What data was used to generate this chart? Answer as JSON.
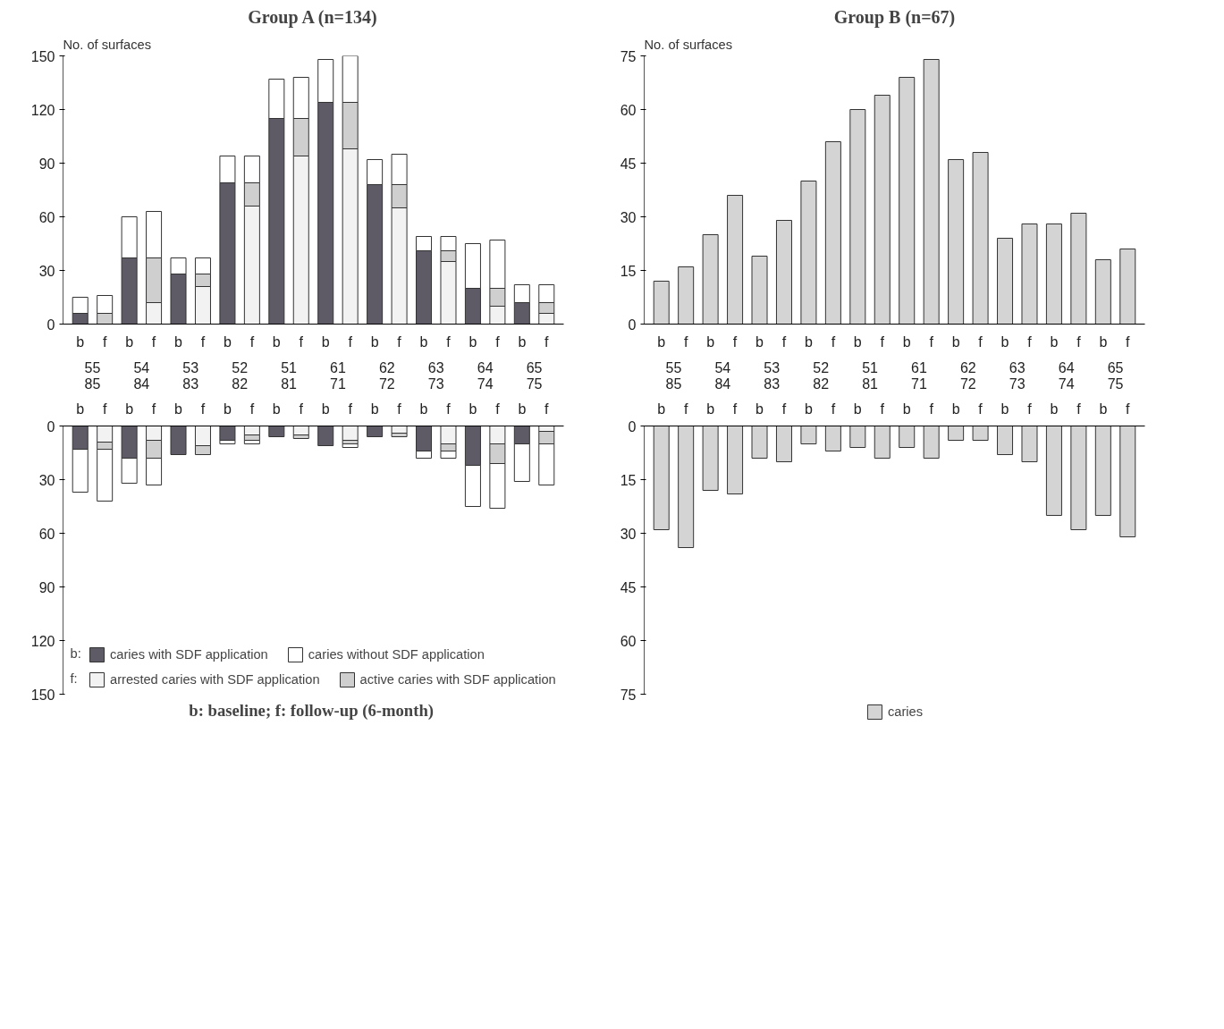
{
  "chart_data": [
    {
      "type": "bar",
      "title": "Group A (n=134)",
      "ylabel": "No. of surfaces",
      "stacked": true,
      "grid": false,
      "legend": false,
      "categories": [
        "b",
        "f",
        "b",
        "f",
        "b",
        "f",
        "b",
        "f",
        "b",
        "f",
        "b",
        "f",
        "b",
        "f",
        "b",
        "f",
        "b",
        "f",
        "b",
        "f"
      ],
      "annotations": [
        "55",
        "54",
        "53",
        "52",
        "51",
        "61",
        "62",
        "63",
        "64",
        "65"
      ],
      "ylim": [
        0,
        150
      ],
      "yticks": [
        0,
        30,
        60,
        90,
        120,
        150
      ],
      "series": [
        {
          "color": "#5e5a66",
          "values": [
            6,
            null,
            37,
            null,
            28,
            null,
            79,
            null,
            115,
            null,
            124,
            null,
            78,
            null,
            41,
            null,
            20,
            null,
            12,
            null
          ]
        },
        {
          "color": "#f2f2f2",
          "values": [
            null,
            null,
            null,
            12,
            null,
            21,
            null,
            66,
            null,
            94,
            null,
            98,
            null,
            65,
            null,
            35,
            null,
            10,
            null,
            6
          ]
        },
        {
          "color": "#cfcfcf",
          "values": [
            null,
            6,
            null,
            25,
            null,
            7,
            null,
            13,
            null,
            21,
            null,
            26,
            null,
            13,
            null,
            6,
            null,
            10,
            null,
            6
          ]
        },
        {
          "color": "#ffffff",
          "values": [
            9,
            10,
            23,
            26,
            9,
            9,
            15,
            15,
            22,
            23,
            24,
            26,
            14,
            17,
            8,
            8,
            25,
            27,
            10,
            10
          ]
        }
      ]
    },
    {
      "type": "bar",
      "stacked": true,
      "grid": false,
      "legend": "bottom",
      "categories": [
        "b",
        "f",
        "b",
        "f",
        "b",
        "f",
        "b",
        "f",
        "b",
        "f",
        "b",
        "f",
        "b",
        "f",
        "b",
        "f",
        "b",
        "f",
        "b",
        "f"
      ],
      "annotations": [
        "85",
        "84",
        "83",
        "82",
        "81",
        "71",
        "72",
        "73",
        "74",
        "75",
        "b:",
        "f:",
        "b: baseline;  f: follow-up (6-month)"
      ],
      "ylim": [
        150,
        0
      ],
      "yticks": [
        0,
        30,
        60,
        90,
        120,
        150
      ],
      "series": [
        {
          "name": "caries with SDF application",
          "color": "#5e5a66",
          "values": [
            13,
            null,
            18,
            null,
            16,
            null,
            8,
            null,
            6,
            null,
            11,
            null,
            6,
            null,
            14,
            null,
            22,
            null,
            10,
            null
          ]
        },
        {
          "name": "arrested caries with SDF application",
          "color": "#f2f2f2",
          "values": [
            null,
            9,
            null,
            8,
            null,
            11,
            null,
            5,
            null,
            5,
            null,
            8,
            null,
            4,
            null,
            10,
            null,
            10,
            null,
            3
          ]
        },
        {
          "name": "active caries with SDF application",
          "color": "#cfcfcf",
          "values": [
            null,
            4,
            null,
            10,
            null,
            5,
            null,
            3,
            null,
            2,
            null,
            2,
            null,
            2,
            null,
            4,
            null,
            11,
            null,
            7
          ]
        },
        {
          "name": "caries without SDF application",
          "color": "#ffffff",
          "values": [
            24,
            29,
            14,
            15,
            null,
            null,
            2,
            2,
            null,
            null,
            null,
            2,
            null,
            null,
            4,
            4,
            23,
            25,
            21,
            23
          ]
        }
      ]
    },
    {
      "type": "bar",
      "title": "Group B (n=67)",
      "ylabel": "No. of surfaces",
      "grid": false,
      "legend": false,
      "categories": [
        "b",
        "f",
        "b",
        "f",
        "b",
        "f",
        "b",
        "f",
        "b",
        "f",
        "b",
        "f",
        "b",
        "f",
        "b",
        "f",
        "b",
        "f",
        "b",
        "f"
      ],
      "annotations": [
        "55",
        "54",
        "53",
        "52",
        "51",
        "61",
        "62",
        "63",
        "64",
        "65"
      ],
      "ylim": [
        0,
        75
      ],
      "yticks": [
        0,
        15,
        30,
        45,
        60,
        75
      ],
      "series": [
        {
          "color": "#d4d4d4",
          "values": [
            12,
            16,
            25,
            36,
            19,
            29,
            40,
            51,
            60,
            64,
            69,
            74,
            46,
            48,
            24,
            28,
            28,
            31,
            18,
            21
          ]
        }
      ]
    },
    {
      "type": "bar",
      "grid": false,
      "legend": "bottom",
      "categories": [
        "b",
        "f",
        "b",
        "f",
        "b",
        "f",
        "b",
        "f",
        "b",
        "f",
        "b",
        "f",
        "b",
        "f",
        "b",
        "f",
        "b",
        "f",
        "b",
        "f"
      ],
      "annotations": [
        "85",
        "84",
        "83",
        "82",
        "81",
        "71",
        "72",
        "73",
        "74",
        "75"
      ],
      "ylim": [
        75,
        0
      ],
      "yticks": [
        0,
        15,
        30,
        45,
        60,
        75
      ],
      "series": [
        {
          "name": "caries",
          "color": "#d4d4d4",
          "values": [
            29,
            34,
            18,
            19,
            9,
            10,
            5,
            7,
            6,
            9,
            6,
            9,
            4,
            4,
            8,
            10,
            25,
            29,
            25,
            31
          ]
        }
      ]
    }
  ]
}
